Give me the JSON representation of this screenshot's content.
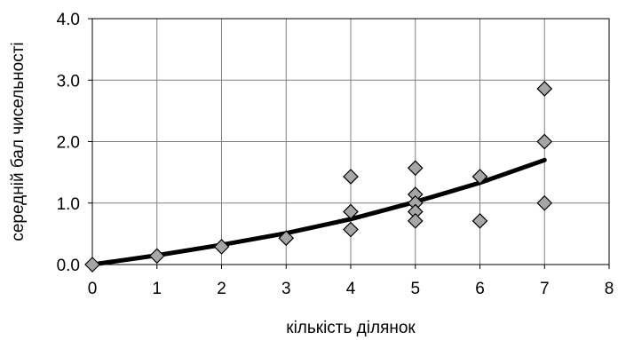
{
  "chart_data": {
    "type": "scatter",
    "xlabel": "кількість ділянок",
    "ylabel": "середній бал чисельності",
    "xlim": [
      0,
      8
    ],
    "ylim": [
      0,
      4
    ],
    "x_ticks": [
      0,
      1,
      2,
      3,
      4,
      5,
      6,
      7,
      8
    ],
    "x_tick_labels": [
      "0",
      "1",
      "2",
      "3",
      "4",
      "5",
      "6",
      "7",
      "8"
    ],
    "y_ticks": [
      0,
      1,
      2,
      3,
      4
    ],
    "y_tick_labels": [
      "0.0",
      "1.0",
      "2.0",
      "3.0",
      "4.0"
    ],
    "grid": true,
    "legend": "none",
    "marker": "diamond",
    "marker_color": "#a6a6a6",
    "trend_color": "#000000",
    "series": [
      {
        "points": [
          {
            "x": 0,
            "y": 0.0
          },
          {
            "x": 1,
            "y": 0.14
          },
          {
            "x": 2,
            "y": 0.29
          },
          {
            "x": 3,
            "y": 0.43
          },
          {
            "x": 4,
            "y": 1.43
          },
          {
            "x": 4,
            "y": 0.86
          },
          {
            "x": 4,
            "y": 0.57
          },
          {
            "x": 5,
            "y": 1.57
          },
          {
            "x": 5,
            "y": 1.14
          },
          {
            "x": 5,
            "y": 1.0
          },
          {
            "x": 5,
            "y": 0.86
          },
          {
            "x": 5,
            "y": 0.71
          },
          {
            "x": 6,
            "y": 1.43
          },
          {
            "x": 6,
            "y": 0.71
          },
          {
            "x": 7,
            "y": 2.86
          },
          {
            "x": 7,
            "y": 2.0
          },
          {
            "x": 7,
            "y": 1.0
          }
        ]
      }
    ],
    "trendline": {
      "type": "polynomial",
      "x_range": [
        0,
        7
      ],
      "points": [
        {
          "x": 0,
          "y": 0.0
        },
        {
          "x": 1,
          "y": 0.15
        },
        {
          "x": 2,
          "y": 0.32
        },
        {
          "x": 3,
          "y": 0.51
        },
        {
          "x": 4,
          "y": 0.74
        },
        {
          "x": 5,
          "y": 1.02
        },
        {
          "x": 6,
          "y": 1.33
        },
        {
          "x": 7,
          "y": 1.7
        }
      ]
    }
  }
}
